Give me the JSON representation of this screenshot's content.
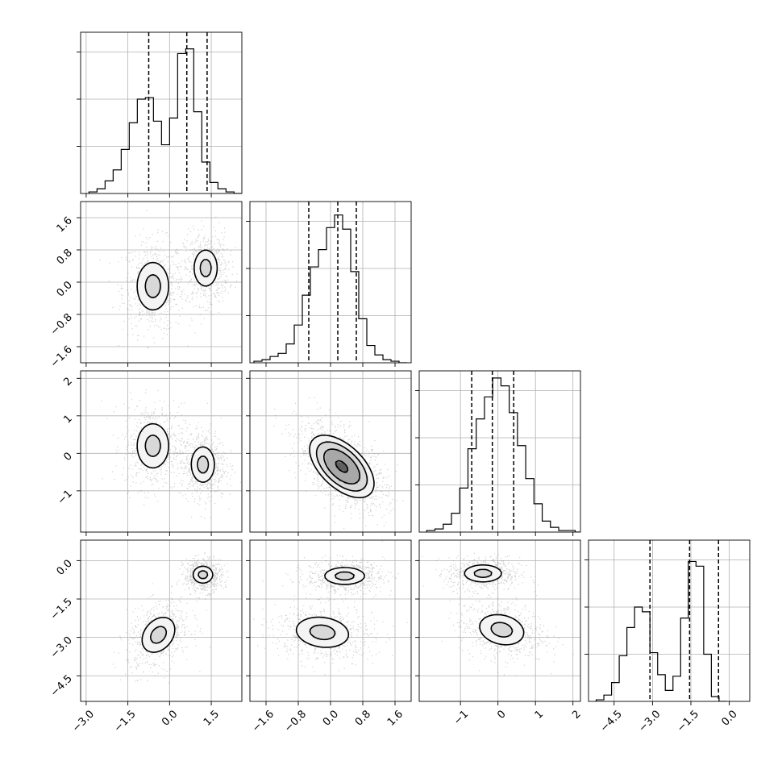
{
  "chart_data": {
    "type": "corner",
    "title": "",
    "n_params": 4,
    "params": [
      {
        "range": [
          -3.2,
          2.6
        ],
        "ticks": [
          -3.0,
          -1.5,
          0.0,
          1.5
        ],
        "tick_labels": [
          "−3.0",
          "−1.5",
          "0.0",
          "1.5"
        ]
      },
      {
        "range": [
          -2.0,
          2.0
        ],
        "ticks": [
          -1.6,
          -0.8,
          0.0,
          0.8,
          1.6
        ],
        "tick_labels": [
          "−1.6",
          "−0.8",
          "0.0",
          "0.8",
          "1.6"
        ]
      },
      {
        "range": [
          -2.1,
          2.2
        ],
        "ticks": [
          -1,
          0,
          1,
          2
        ],
        "tick_labels": [
          "−1",
          "0",
          "1",
          "2"
        ]
      },
      {
        "range": [
          -5.5,
          0.8
        ],
        "ticks": [
          -4.5,
          -3.0,
          -1.5,
          0.0
        ],
        "tick_labels": [
          "−4.5",
          "−3.0",
          "−1.5",
          "0.0"
        ]
      }
    ],
    "marginals": [
      {
        "bin_start": -2.9,
        "bin_width": 0.29,
        "counts": [
          0.01,
          0.03,
          0.08,
          0.15,
          0.28,
          0.45,
          0.6,
          0.61,
          0.46,
          0.31,
          0.48,
          0.89,
          0.92,
          0.52,
          0.2,
          0.07,
          0.03,
          0.01,
          0
        ],
        "quantiles": [
          -0.75,
          0.62,
          1.35
        ],
        "grid_y": [
          0.3,
          0.6,
          0.9
        ]
      },
      {
        "bin_start": -1.9,
        "bin_width": 0.2,
        "counts": [
          0.01,
          0.02,
          0.04,
          0.06,
          0.12,
          0.24,
          0.43,
          0.61,
          0.72,
          0.86,
          0.94,
          0.85,
          0.58,
          0.28,
          0.11,
          0.05,
          0.02,
          0.01,
          0
        ],
        "quantiles": [
          -0.54,
          0.18,
          0.64
        ],
        "grid_y": [
          0.3,
          0.6,
          0.9
        ]
      },
      {
        "bin_start": -1.9,
        "bin_width": 0.22,
        "counts": [
          0.01,
          0.02,
          0.05,
          0.12,
          0.28,
          0.53,
          0.72,
          0.86,
          0.98,
          0.93,
          0.76,
          0.55,
          0.34,
          0.18,
          0.07,
          0.03,
          0.01,
          0.01,
          0
        ],
        "quantiles": [
          -0.7,
          -0.15,
          0.42
        ],
        "grid_y": [
          0.3,
          0.6,
          0.9
        ]
      },
      {
        "bin_start": -5.2,
        "bin_width": 0.3,
        "counts": [
          0.01,
          0.04,
          0.12,
          0.29,
          0.47,
          0.6,
          0.57,
          0.31,
          0.17,
          0.07,
          0.16,
          0.53,
          0.89,
          0.86,
          0.3,
          0.03,
          0
        ],
        "quantiles": [
          -3.1,
          -1.55,
          -0.42
        ],
        "grid_y": [
          0.3,
          0.6,
          0.9
        ]
      }
    ],
    "joints": [
      {
        "x": 0,
        "y": 1,
        "modes": [
          {
            "mx": -0.6,
            "my": -0.1,
            "sx": 0.48,
            "sy": 0.5,
            "rho": 0.0,
            "w": 0.5
          },
          {
            "mx": 1.3,
            "my": 0.35,
            "sx": 0.35,
            "sy": 0.38,
            "rho": 0.0,
            "w": 0.5
          }
        ]
      },
      {
        "x": 0,
        "y": 2,
        "modes": [
          {
            "mx": -0.6,
            "my": 0.2,
            "sx": 0.48,
            "sy": 0.5,
            "rho": 0.0,
            "w": 0.5
          },
          {
            "mx": 1.2,
            "my": -0.3,
            "sx": 0.35,
            "sy": 0.4,
            "rho": 0.0,
            "w": 0.5
          }
        ]
      },
      {
        "x": 0,
        "y": 3,
        "modes": [
          {
            "mx": -0.4,
            "my": -2.9,
            "sx": 0.5,
            "sy": 0.58,
            "rho": 0.3,
            "w": 0.5
          },
          {
            "mx": 1.2,
            "my": -0.55,
            "sx": 0.3,
            "sy": 0.28,
            "rho": 0.0,
            "w": 0.5
          }
        ]
      },
      {
        "x": 1,
        "y": 2,
        "modes": [
          {
            "mx": 0.28,
            "my": -0.35,
            "sx": 0.48,
            "sy": 0.5,
            "rho": -0.55,
            "w": 1.0
          }
        ]
      },
      {
        "x": 1,
        "y": 3,
        "modes": [
          {
            "mx": -0.2,
            "my": -2.8,
            "sx": 0.55,
            "sy": 0.5,
            "rho": -0.15,
            "w": 0.5
          },
          {
            "mx": 0.35,
            "my": -0.6,
            "sx": 0.42,
            "sy": 0.28,
            "rho": 0.0,
            "w": 0.5
          }
        ]
      },
      {
        "x": 2,
        "y": 3,
        "modes": [
          {
            "mx": -0.4,
            "my": -0.5,
            "sx": 0.42,
            "sy": 0.28,
            "rho": 0.0,
            "w": 0.5
          },
          {
            "mx": 0.1,
            "my": -2.7,
            "sx": 0.5,
            "sy": 0.5,
            "rho": -0.2,
            "w": 0.5
          }
        ]
      }
    ],
    "contour_levels": [
      0.5,
      0.85,
      1.3,
      1.9
    ],
    "grid": true
  }
}
